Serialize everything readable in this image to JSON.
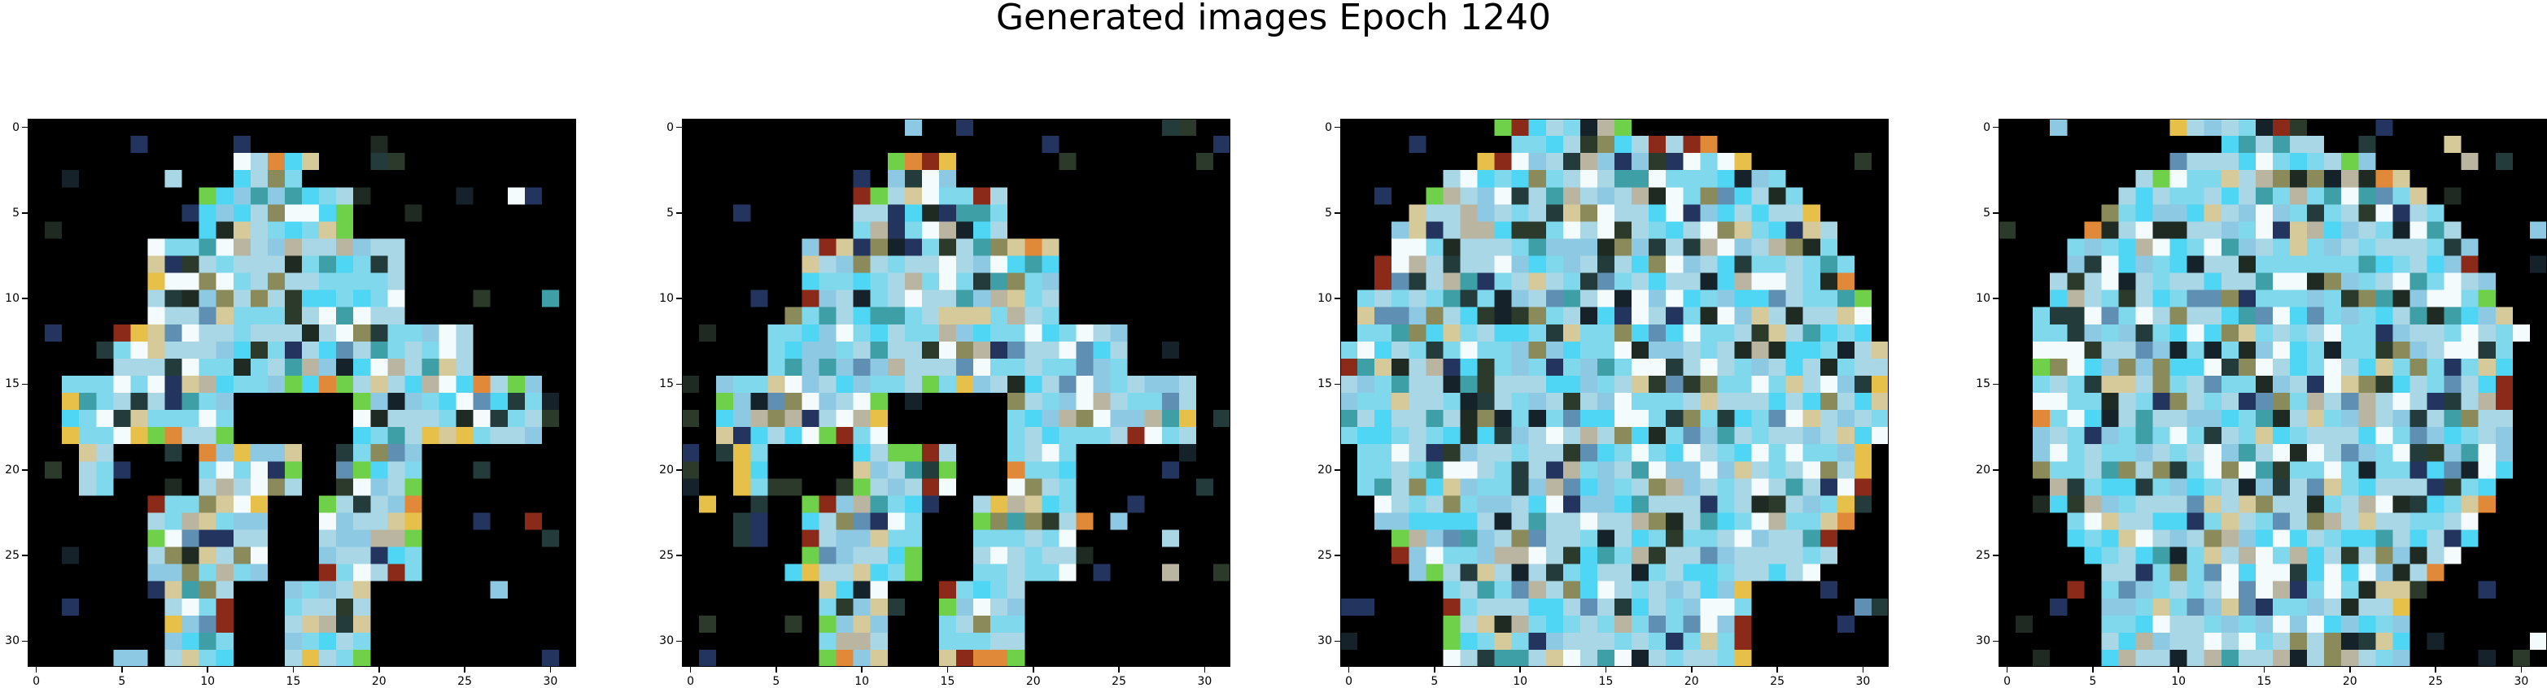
{
  "title": "Generated images Epoch 1240",
  "image_grid": {
    "rows": 32,
    "cols": 32,
    "background": "#000000"
  },
  "axes": {
    "x_ticks": [
      "0",
      "5",
      "10",
      "15",
      "20",
      "25",
      "30"
    ],
    "y_ticks": [
      "0",
      "5",
      "10",
      "15",
      "20",
      "25",
      "30"
    ]
  },
  "panels": [
    {
      "name": "generated-image-1"
    },
    {
      "name": "generated-image-2"
    },
    {
      "name": "generated-image-3"
    },
    {
      "name": "generated-image-4"
    }
  ],
  "palette": {
    "light_cyan": "#7fd8ec",
    "bright_cyan": "#4fd6f4",
    "pale_blue": "#a9d7e6",
    "sky_blue": "#8ec9e4",
    "steel_blue": "#5f8fb3",
    "teal": "#3f9fa6",
    "grey_beige": "#b9b5a1",
    "sand": "#d6c99a",
    "olive": "#8b8a5a",
    "gold": "#e7c04a",
    "orange": "#e08a39",
    "red_brown": "#8c2a1a",
    "white": "#f4fbfd",
    "navy": "#23355e",
    "dark_teal": "#233b3a",
    "green": "#6fd04a"
  }
}
